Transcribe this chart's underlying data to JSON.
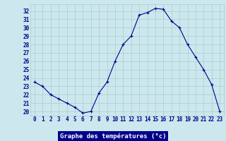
{
  "hours": [
    0,
    1,
    2,
    3,
    4,
    5,
    6,
    7,
    8,
    9,
    10,
    11,
    12,
    13,
    14,
    15,
    16,
    17,
    18,
    19,
    20,
    21,
    22,
    23
  ],
  "temperatures": [
    23.5,
    23.0,
    22.0,
    21.5,
    21.0,
    20.5,
    19.8,
    20.0,
    22.2,
    23.5,
    26.0,
    28.0,
    29.0,
    31.5,
    31.8,
    32.3,
    32.2,
    30.8,
    30.0,
    28.0,
    26.5,
    25.0,
    23.2,
    20.0
  ],
  "bg_color": "#cce8ee",
  "grid_color": "#aacccc",
  "line_color": "#00008b",
  "marker_color": "#00008b",
  "xlabel": "Graphe des températures (°c)",
  "ylabel_ticks": [
    20,
    21,
    22,
    23,
    24,
    25,
    26,
    27,
    28,
    29,
    30,
    31,
    32
  ],
  "ylim": [
    19.5,
    32.8
  ],
  "xlim": [
    -0.5,
    23.5
  ],
  "xlabel_bg": "#00008b",
  "xlabel_color": "#ffffff",
  "tick_fontsize": 5.5,
  "xlabel_fontsize": 6.5
}
